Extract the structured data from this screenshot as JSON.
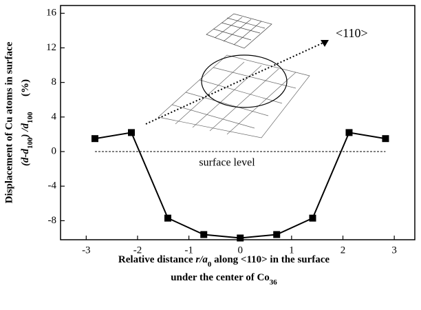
{
  "chart_data": {
    "type": "line",
    "xlabel": {
      "line1": [
        "Relative distance ",
        "r/a",
        "0",
        " along <110> in the surface"
      ],
      "line2": [
        "under the center of Co",
        "36"
      ]
    },
    "ylabel": {
      "line1": "Displacement of Cu atoms in surface",
      "line2": [
        "(d-d",
        "100",
        ") /d",
        "100",
        "      (%)"
      ]
    },
    "x": [
      -2.83,
      -2.12,
      -1.41,
      -0.71,
      0,
      0.71,
      1.41,
      2.12,
      2.83
    ],
    "series": [
      {
        "color": "#000000",
        "values": [
          1.5,
          2.2,
          -7.7,
          -9.6,
          -10.0,
          -9.6,
          -7.7,
          2.2,
          1.5
        ]
      }
    ],
    "xlim": [
      -3.5,
      3.4
    ],
    "ylim": [
      -10.2,
      16.9
    ],
    "xticks": [
      -3,
      -2,
      -1,
      0,
      1,
      2,
      3
    ],
    "yticks": [
      -8,
      -4,
      0,
      4,
      8,
      12,
      16
    ],
    "annotations": {
      "direction": "<110>",
      "surface": "surface level"
    }
  }
}
